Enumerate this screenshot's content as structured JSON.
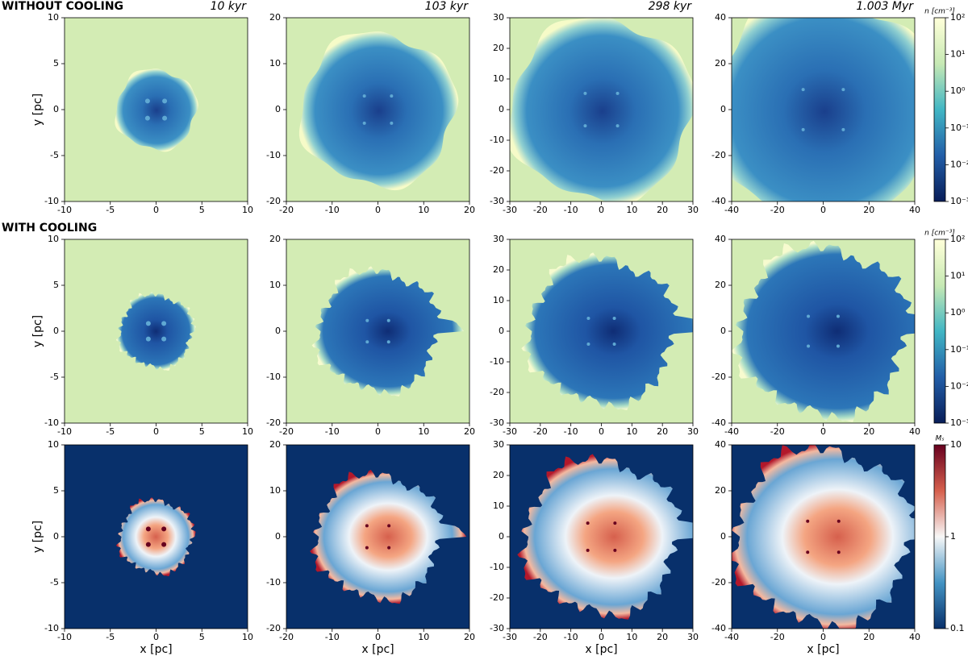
{
  "chart_data": [
    {
      "type": "heatmap",
      "row_label": "WITHOUT COOLING",
      "title": "10 kyr",
      "ylabel": "y [pc]",
      "color": "#d3ecb4",
      "xlim": [
        -10,
        10
      ],
      "ylim": [
        -10,
        10
      ],
      "xticks": [
        -10,
        -5,
        0,
        5,
        10
      ],
      "yticks": [
        -10,
        -5,
        0,
        5,
        10
      ]
    },
    {
      "type": "heatmap",
      "title": "103 kyr",
      "color": "#d3ecb4",
      "xlim": [
        -20,
        20
      ],
      "ylim": [
        -20,
        20
      ],
      "xticks": [
        -20,
        -10,
        0,
        10,
        20
      ],
      "yticks": [
        -20,
        -10,
        0,
        10,
        20
      ]
    },
    {
      "type": "heatmap",
      "title": "298 kyr",
      "color": "#d3ecb4",
      "xlim": [
        -30,
        30
      ],
      "ylim": [
        -30,
        30
      ],
      "xticks": [
        -30,
        -20,
        -10,
        0,
        10,
        20,
        30
      ],
      "yticks": [
        -30,
        -20,
        -10,
        0,
        10,
        20,
        30
      ]
    },
    {
      "type": "heatmap",
      "title": "1.003 Myr",
      "color": "#d3ecb4",
      "xlim": [
        -40,
        40
      ],
      "ylim": [
        -40,
        40
      ],
      "xticks": [
        -40,
        -20,
        0,
        20,
        40
      ],
      "yticks": [
        -40,
        -20,
        0,
        20,
        40
      ]
    },
    {
      "type": "heatmap",
      "row_label": "WITH COOLING",
      "ylabel": "y [pc]",
      "color": "#d3ecb4",
      "xlim": [
        -10,
        10
      ],
      "ylim": [
        -10,
        10
      ],
      "xticks": [
        -10,
        -5,
        0,
        5,
        10
      ],
      "yticks": [
        -10,
        -5,
        0,
        5,
        10
      ]
    },
    {
      "type": "heatmap",
      "color": "#d3ecb4",
      "xlim": [
        -20,
        20
      ],
      "ylim": [
        -20,
        20
      ],
      "xticks": [
        -20,
        -10,
        0,
        10,
        20
      ],
      "yticks": [
        -20,
        -10,
        0,
        10,
        20
      ]
    },
    {
      "type": "heatmap",
      "color": "#d3ecb4",
      "xlim": [
        -30,
        30
      ],
      "ylim": [
        -30,
        30
      ],
      "xticks": [
        -30,
        -20,
        -10,
        0,
        10,
        20,
        30
      ],
      "yticks": [
        -30,
        -20,
        -10,
        0,
        10,
        20,
        30
      ]
    },
    {
      "type": "heatmap",
      "color": "#d3ecb4",
      "xlim": [
        -40,
        40
      ],
      "ylim": [
        -40,
        40
      ],
      "xticks": [
        -40,
        -20,
        0,
        20,
        40
      ],
      "yticks": [
        -40,
        -20,
        0,
        20,
        40
      ]
    },
    {
      "type": "heatmap",
      "ylabel": "y [pc]",
      "xlabel": "x [pc]",
      "color": "#08306b",
      "xlim": [
        -10,
        10
      ],
      "ylim": [
        -10,
        10
      ],
      "xticks": [
        -10,
        -5,
        0,
        5,
        10
      ],
      "yticks": [
        -10,
        -5,
        0,
        5,
        10
      ]
    },
    {
      "type": "heatmap",
      "xlabel": "x [pc]",
      "color": "#08306b",
      "xlim": [
        -20,
        20
      ],
      "ylim": [
        -20,
        20
      ],
      "xticks": [
        -20,
        -10,
        0,
        10,
        20
      ],
      "yticks": [
        -20,
        -10,
        0,
        10,
        20
      ]
    },
    {
      "type": "heatmap",
      "xlabel": "x [pc]",
      "color": "#08306b",
      "xlim": [
        -30,
        30
      ],
      "ylim": [
        -30,
        30
      ],
      "xticks": [
        -30,
        -20,
        -10,
        0,
        10,
        20,
        30
      ],
      "yticks": [
        -30,
        -20,
        -10,
        0,
        10,
        20,
        30
      ]
    },
    {
      "type": "heatmap",
      "xlabel": "x [pc]",
      "color": "#08306b",
      "xlim": [
        -40,
        40
      ],
      "ylim": [
        -40,
        40
      ],
      "xticks": [
        -40,
        -20,
        0,
        20,
        40
      ],
      "yticks": [
        -40,
        -20,
        0,
        20,
        40
      ]
    },
    {
      "type": "colorbar",
      "label": "n [cm⁻³]",
      "log_scale": true,
      "colors": [
        "#081d58",
        "#225ea8",
        "#41b6c4",
        "#c7e9b4",
        "#ffffd9"
      ],
      "ylim": [
        0.001,
        100
      ],
      "yticks": [
        {
          "value": 0.001,
          "label": "10⁻³"
        },
        {
          "value": 0.01,
          "label": "10⁻²"
        },
        {
          "value": 0.1,
          "label": "10⁻¹"
        },
        {
          "value": 1,
          "label": "10⁰"
        },
        {
          "value": 10,
          "label": "10¹"
        },
        {
          "value": 100,
          "label": "10²"
        }
      ]
    },
    {
      "type": "colorbar",
      "label": "n [cm⁻³]",
      "log_scale": true,
      "colors": [
        "#081d58",
        "#225ea8",
        "#41b6c4",
        "#c7e9b4",
        "#ffffd9"
      ],
      "ylim": [
        0.001,
        100
      ],
      "yticks": [
        {
          "value": 0.001,
          "label": "10⁻³"
        },
        {
          "value": 0.01,
          "label": "10⁻²"
        },
        {
          "value": 0.1,
          "label": "10⁻¹"
        },
        {
          "value": 1,
          "label": "10⁰"
        },
        {
          "value": 10,
          "label": "10¹"
        },
        {
          "value": 100,
          "label": "10²"
        }
      ]
    },
    {
      "type": "colorbar",
      "label": "Mₛ",
      "log_scale": true,
      "colors": [
        "#08306b",
        "#4393c3",
        "#f7f7f7",
        "#d6604d",
        "#67001f"
      ],
      "ylim": [
        0.1,
        10
      ],
      "yticks": [
        0.1,
        1,
        10
      ]
    }
  ]
}
